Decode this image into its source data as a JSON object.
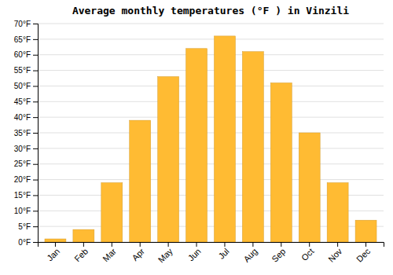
{
  "chart_data": {
    "type": "bar",
    "title": "Average monthly temperatures (°F ) in Vinzili",
    "categories": [
      "Jan",
      "Feb",
      "Mar",
      "Apr",
      "May",
      "Jun",
      "Jul",
      "Aug",
      "Sep",
      "Oct",
      "Nov",
      "Dec"
    ],
    "values": [
      1,
      4,
      19,
      39,
      53,
      62,
      66,
      61,
      51,
      35,
      19,
      7
    ],
    "color": "#FFBB33",
    "ylim": [
      0,
      70
    ],
    "yticks": [
      {
        "value": 0,
        "label": "0°F"
      },
      {
        "value": 5,
        "label": "5°F"
      },
      {
        "value": 10,
        "label": "10°F"
      },
      {
        "value": 15,
        "label": "15°F"
      },
      {
        "value": 20,
        "label": "20°F"
      },
      {
        "value": 25,
        "label": "25°F"
      },
      {
        "value": 30,
        "label": "30°F"
      },
      {
        "value": 35,
        "label": "35°F"
      },
      {
        "value": 40,
        "label": "40°F"
      },
      {
        "value": 45,
        "label": "45°F"
      },
      {
        "value": 50,
        "label": "50°F"
      },
      {
        "value": 55,
        "label": "55°F"
      },
      {
        "value": 60,
        "label": "60°F"
      },
      {
        "value": 65,
        "label": "65°F"
      },
      {
        "value": 70,
        "label": "70°F"
      }
    ],
    "grid": true
  }
}
